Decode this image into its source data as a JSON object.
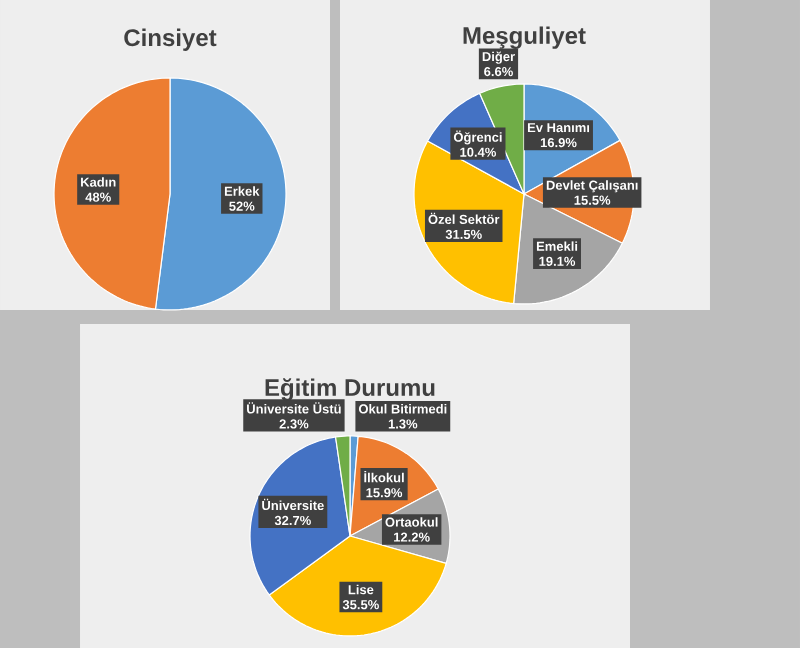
{
  "chart_data": [
    {
      "type": "pie",
      "title": "Cinsiyet",
      "categories": [
        "Erkek",
        "Kadın"
      ],
      "values": [
        52,
        48
      ],
      "colors": [
        "#5b9bd5",
        "#ed7d31"
      ],
      "value_labels": [
        "52%",
        "48%"
      ]
    },
    {
      "type": "pie",
      "title": "Meşguliyet",
      "categories": [
        "Ev Hanımı",
        "Devlet Çalışanı",
        "Emekli",
        "Özel Sektör",
        "Öğrenci",
        "Diğer"
      ],
      "values": [
        16.9,
        15.5,
        19.1,
        31.5,
        10.4,
        6.6
      ],
      "colors": [
        "#5b9bd5",
        "#ed7d31",
        "#a5a5a5",
        "#ffc000",
        "#4472c4",
        "#70ad47"
      ],
      "value_labels": [
        "16.9%",
        "15.5%",
        "19.1%",
        "31.5%",
        "10.4%",
        "6.6%"
      ]
    },
    {
      "type": "pie",
      "title": "Eğitim Durumu",
      "categories": [
        "Okul Bitirmedi",
        "İlkokul",
        "Ortaokul",
        "Lise",
        "Üniversite",
        "Üniversite Üstü"
      ],
      "values": [
        1.3,
        15.9,
        12.2,
        35.5,
        32.7,
        2.3
      ],
      "colors": [
        "#5b9bd5",
        "#ed7d31",
        "#a5a5a5",
        "#ffc000",
        "#4472c4",
        "#70ad47"
      ],
      "value_labels": [
        "1.3%",
        "15.9%",
        "12.2%",
        "35.5%",
        "32.7%",
        "2.3%"
      ]
    }
  ]
}
